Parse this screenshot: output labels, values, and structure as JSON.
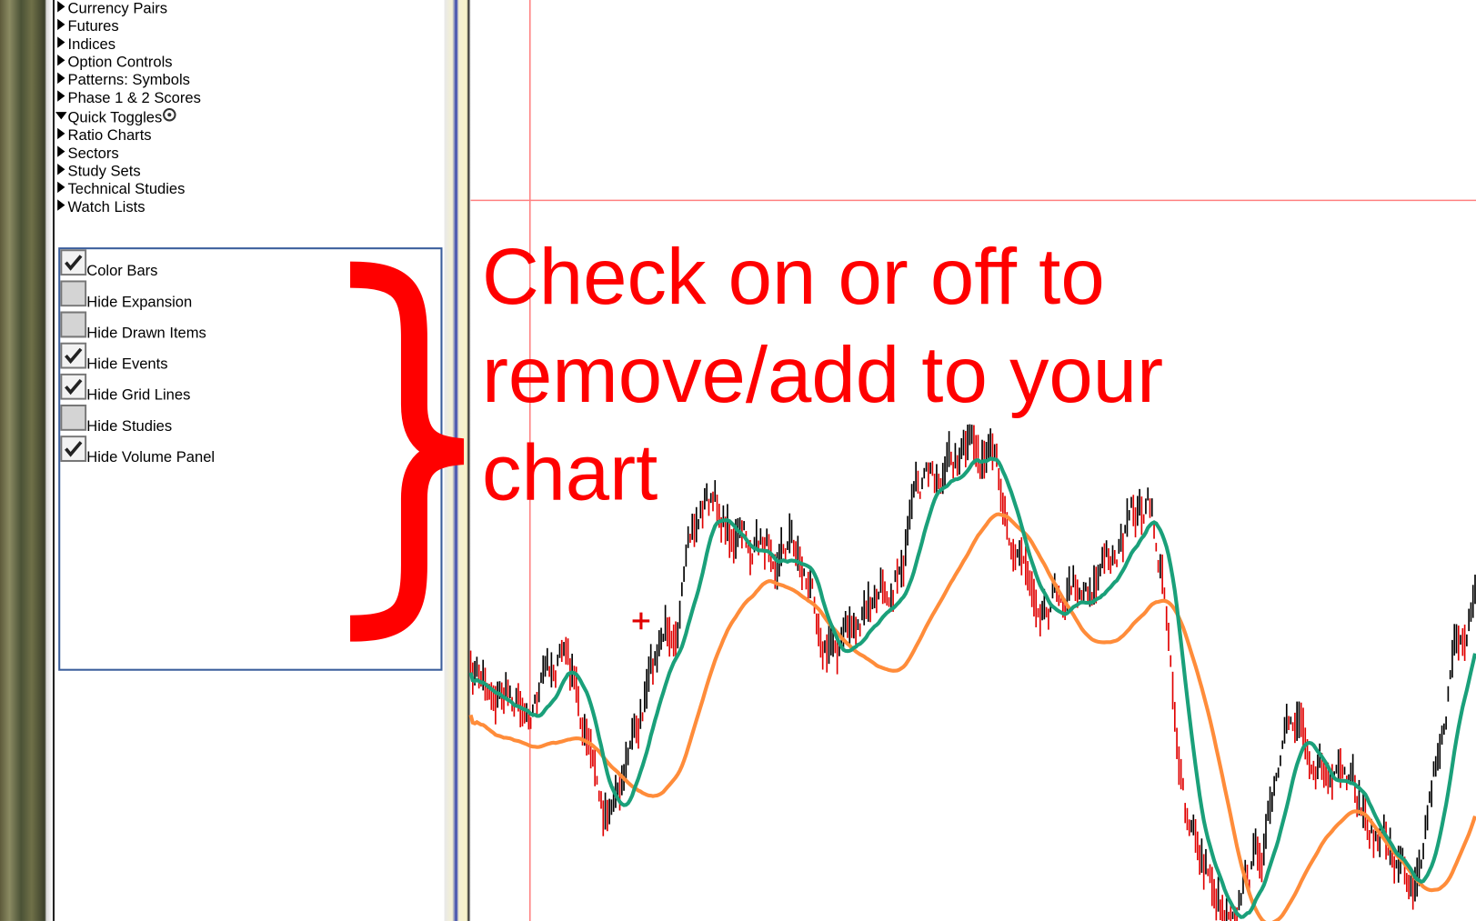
{
  "menu_top": [
    "Currency Pairs",
    "Futures",
    "Indices",
    "Option Controls",
    "Patterns: Symbols",
    "Phase 1 & 2 Scores"
  ],
  "open_section": {
    "title": "Quick Toggles",
    "toggles": [
      {
        "label": "Color Bars",
        "checked": true
      },
      {
        "label": "Hide Expansion",
        "checked": false
      },
      {
        "label": "Hide Drawn Items",
        "checked": false
      },
      {
        "label": "Hide Events",
        "checked": true
      },
      {
        "label": "Hide Grid Lines",
        "checked": true
      },
      {
        "label": "Hide Studies",
        "checked": false
      },
      {
        "label": "Hide Volume Panel",
        "checked": true
      }
    ]
  },
  "menu_bottom": [
    "Ratio Charts",
    "Sectors",
    "Study Sets",
    "Technical Studies",
    "Watch Lists"
  ],
  "annotation": [
    "Check on or off to",
    "remove/add to your",
    "chart"
  ]
}
